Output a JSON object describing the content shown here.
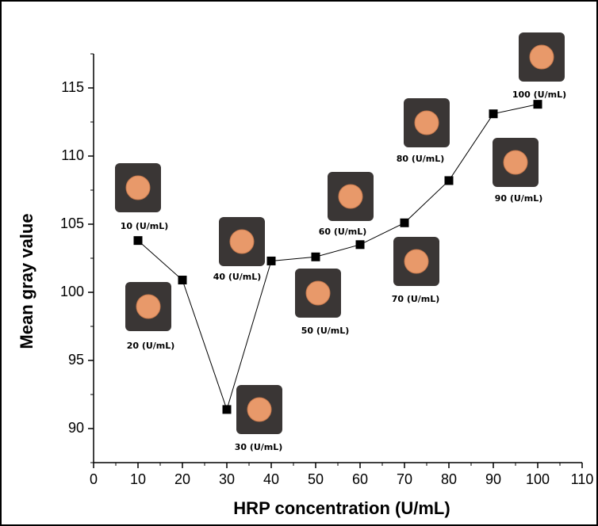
{
  "chart_data": {
    "type": "line",
    "x_label": "HRP concentration (U/mL)",
    "y_label": "Mean gray value",
    "x": [
      10,
      20,
      30,
      40,
      50,
      60,
      70,
      80,
      90,
      100
    ],
    "series": [
      {
        "color": "#000000",
        "values": [
          103.8,
          100.9,
          91.4,
          102.3,
          102.6,
          103.5,
          105.1,
          108.2,
          113.1,
          113.8
        ]
      }
    ],
    "point_labels": [
      "10 (U/mL)",
      "20 (U/mL)",
      "30 (U/mL)",
      "40 (U/mL)",
      "50 (U/mL)",
      "60 (U/mL)",
      "70 (U/mL)",
      "80 (U/mL)",
      "90 (U/mL)",
      "100 (U/mL)"
    ],
    "xlim": [
      0,
      110
    ],
    "xticks": [
      0,
      10,
      20,
      30,
      40,
      50,
      60,
      70,
      80,
      90,
      100,
      110
    ],
    "ylim": [
      87.5,
      117.5
    ],
    "yticks": [
      90,
      95,
      100,
      105,
      110,
      115
    ]
  }
}
